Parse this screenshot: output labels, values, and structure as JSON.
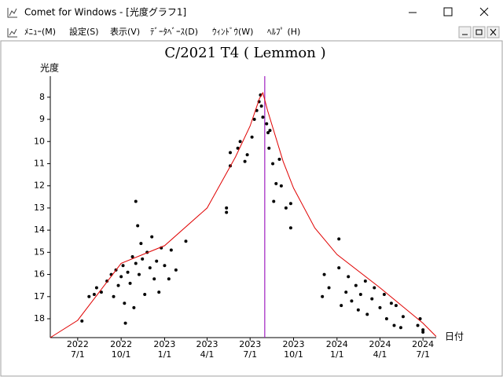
{
  "window": {
    "title": "Comet for Windows - [光度グラフ1]",
    "menu": [
      "ﾒﾆｭｰ(M)",
      "設定(S)",
      "表示(V)",
      "ﾃﾞｰﾀﾍﾞｰｽ(D)",
      "ｳｨﾝﾄﾞｳ(W)",
      "ﾍﾙﾌﾟ (H)"
    ]
  },
  "chart_data": {
    "type": "scatter",
    "title": "C/2021 T4 ( Lemmon )",
    "ylabel": "光度",
    "xlabel": "日付",
    "xlim": [
      "2022-05-04",
      "2024-07-29"
    ],
    "ylim": [
      18.85,
      7.05
    ],
    "xticks": [
      {
        "value": "2022-07-01",
        "label": [
          "2022",
          "7/1"
        ]
      },
      {
        "value": "2022-10-01",
        "label": [
          "2022",
          "10/1"
        ]
      },
      {
        "value": "2023-01-01",
        "label": [
          "2023",
          "1/1"
        ]
      },
      {
        "value": "2023-04-01",
        "label": [
          "2023",
          "4/1"
        ]
      },
      {
        "value": "2023-07-01",
        "label": [
          "2023",
          "7/1"
        ]
      },
      {
        "value": "2023-10-01",
        "label": [
          "2023",
          "10/1"
        ]
      },
      {
        "value": "2024-01-01",
        "label": [
          "2024",
          "1/1"
        ]
      },
      {
        "value": "2024-04-01",
        "label": [
          "2024",
          "4/1"
        ]
      },
      {
        "value": "2024-07-01",
        "label": [
          "2024",
          "7/1"
        ]
      }
    ],
    "yticks": [
      8,
      9,
      10,
      11,
      12,
      13,
      14,
      15,
      16,
      17,
      18
    ],
    "marker": {
      "x": "2023-08-01",
      "color": "#a020c0"
    },
    "series": [
      {
        "type": "scatter",
        "color": "#000000",
        "x": [
          "2022-07-10",
          "2022-07-25",
          "2022-08-05",
          "2022-08-10",
          "2022-08-20",
          "2022-09-01",
          "2022-09-10",
          "2022-09-15",
          "2022-09-20",
          "2022-09-25",
          "2022-10-01",
          "2022-10-05",
          "2022-10-08",
          "2022-10-10",
          "2022-10-15",
          "2022-10-20",
          "2022-10-25",
          "2022-10-28",
          "2022-11-01",
          "2022-11-01",
          "2022-11-05",
          "2022-11-08",
          "2022-11-12",
          "2022-11-15",
          "2022-11-20",
          "2022-11-25",
          "2022-12-01",
          "2022-12-05",
          "2022-12-10",
          "2022-12-15",
          "2022-12-20",
          "2022-12-25",
          "2023-01-01",
          "2023-01-10",
          "2023-01-15",
          "2023-01-25",
          "2023-02-15",
          "2023-05-20",
          "2023-05-20",
          "2023-05-12",
          "2023-05-12",
          "2023-06-05",
          "2023-06-10",
          "2023-06-20",
          "2023-06-25",
          "2023-07-05",
          "2023-07-10",
          "2023-07-15",
          "2023-07-20",
          "2023-07-23",
          "2023-07-25",
          "2023-07-28",
          "2023-08-05",
          "2023-08-08",
          "2023-08-10",
          "2023-08-12",
          "2023-08-18",
          "2023-08-20",
          "2023-08-25",
          "2023-09-01",
          "2023-09-05",
          "2023-09-15",
          "2023-09-25",
          "2023-09-25",
          "2023-12-01",
          "2023-12-05",
          "2023-12-15",
          "2024-01-05",
          "2024-01-05",
          "2024-01-10",
          "2024-01-20",
          "2024-01-25",
          "2024-02-01",
          "2024-02-10",
          "2024-02-15",
          "2024-02-20",
          "2024-03-01",
          "2024-03-05",
          "2024-03-15",
          "2024-03-20",
          "2024-04-01",
          "2024-04-10",
          "2024-04-15",
          "2024-04-25",
          "2024-05-01",
          "2024-05-05",
          "2024-05-15",
          "2024-05-20",
          "2024-06-20",
          "2024-06-25",
          "2024-07-01",
          "2024-07-01"
        ],
        "values": [
          18.1,
          17.0,
          16.9,
          16.6,
          16.8,
          16.3,
          16.0,
          17.0,
          15.8,
          16.5,
          16.1,
          15.6,
          17.3,
          18.2,
          15.9,
          16.4,
          15.2,
          17.5,
          12.7,
          15.5,
          13.8,
          16.0,
          14.6,
          15.3,
          16.9,
          15.0,
          15.7,
          14.3,
          16.2,
          15.4,
          16.8,
          14.8,
          15.6,
          16.2,
          14.9,
          15.8,
          14.5,
          10.5,
          11.1,
          13.2,
          13.0,
          10.3,
          10.0,
          10.9,
          10.6,
          9.8,
          9.0,
          8.6,
          8.2,
          7.9,
          8.4,
          8.9,
          9.2,
          9.6,
          10.3,
          9.5,
          11.0,
          12.7,
          11.9,
          10.8,
          12.0,
          13.0,
          13.9,
          12.8,
          17.0,
          16.0,
          16.6,
          14.4,
          15.7,
          17.4,
          16.8,
          16.1,
          17.2,
          16.5,
          17.6,
          16.9,
          16.3,
          17.8,
          17.1,
          16.6,
          17.5,
          16.9,
          18.0,
          17.3,
          18.3,
          17.4,
          18.4,
          17.9,
          18.3,
          18.0,
          18.6,
          18.5
        ]
      },
      {
        "type": "line",
        "color": "#e00000",
        "x": [
          "2022-05-04",
          "2022-07-01",
          "2022-10-01",
          "2023-01-01",
          "2023-04-01",
          "2023-05-31",
          "2023-07-01",
          "2023-07-21",
          "2023-07-28",
          "2023-08-07",
          "2023-09-09",
          "2023-10-01",
          "2023-11-15",
          "2024-01-01",
          "2024-04-01",
          "2024-07-01",
          "2024-07-29"
        ],
        "values": [
          18.85,
          18.07,
          15.5,
          14.7,
          13.0,
          10.7,
          9.3,
          8.05,
          7.8,
          8.6,
          10.9,
          12.1,
          13.9,
          15.1,
          16.6,
          18.2,
          18.8
        ]
      }
    ]
  }
}
